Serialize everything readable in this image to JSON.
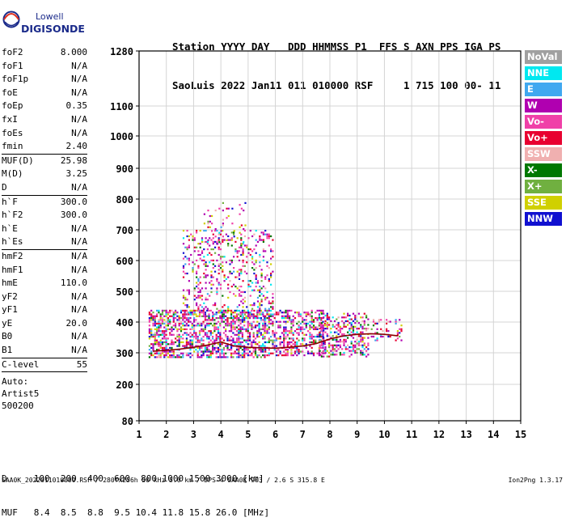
{
  "logo": {
    "line1": "Lowell",
    "line2": "DIGISONDE"
  },
  "header": {
    "row1": "Station YYYY DAY   DDD HHMMSS P1  FFS S AXN PPS IGA PS",
    "row2": "SaoLuis 2022 Jan11 011 010000 RSF     1 715 100 00- 11"
  },
  "params": {
    "group1": [
      {
        "label": "foF2",
        "value": "8.000"
      },
      {
        "label": "foF1",
        "value": "N/A"
      },
      {
        "label": "foF1p",
        "value": "N/A"
      },
      {
        "label": "foE",
        "value": "N/A"
      },
      {
        "label": "foEp",
        "value": "0.35"
      },
      {
        "label": "fxI",
        "value": "N/A"
      },
      {
        "label": "foEs",
        "value": "N/A"
      },
      {
        "label": "fmin",
        "value": "2.40"
      }
    ],
    "group2": [
      {
        "label": "MUF(D)",
        "value": "25.98"
      },
      {
        "label": "M(D)",
        "value": "3.25"
      },
      {
        "label": "D",
        "value": "N/A"
      }
    ],
    "group3": [
      {
        "label": "h`F",
        "value": "300.0"
      },
      {
        "label": "h`F2",
        "value": "300.0"
      },
      {
        "label": "h`E",
        "value": "N/A"
      },
      {
        "label": "h`Es",
        "value": "N/A"
      }
    ],
    "group4": [
      {
        "label": "hmF2",
        "value": "N/A"
      },
      {
        "label": "hmF1",
        "value": "N/A"
      },
      {
        "label": "hmE",
        "value": "110.0"
      },
      {
        "label": "yF2",
        "value": "N/A"
      },
      {
        "label": "yF1",
        "value": "N/A"
      },
      {
        "label": "yE",
        "value": "20.0"
      },
      {
        "label": "B0",
        "value": "N/A"
      },
      {
        "label": "B1",
        "value": "N/A"
      }
    ],
    "group5": [
      {
        "label": "C-level",
        "value": "55"
      }
    ],
    "auto": [
      "Auto:",
      "Artist5",
      "500200"
    ]
  },
  "legend": [
    {
      "label": "NoVal",
      "color": "#a0a0a0"
    },
    {
      "label": "NNE",
      "color": "#00e8f0"
    },
    {
      "label": "E",
      "color": "#40a8f0"
    },
    {
      "label": "W",
      "color": "#b000b0"
    },
    {
      "label": "Vo-",
      "color": "#f040a8"
    },
    {
      "label": "Vo+",
      "color": "#e80030"
    },
    {
      "label": "SSW",
      "color": "#f0b0b0"
    },
    {
      "label": "X-",
      "color": "#007800"
    },
    {
      "label": "X+",
      "color": "#70b040"
    },
    {
      "label": "SSE",
      "color": "#d0d000"
    },
    {
      "label": "NNW",
      "color": "#1010d0"
    }
  ],
  "chart_data": {
    "type": "scatter",
    "xlabel": "",
    "ylabel": "",
    "xlim": [
      1,
      15
    ],
    "ylim": [
      80,
      1280
    ],
    "y_scale": "nonlinear",
    "grid": true,
    "x_ticks": [
      "1",
      "2",
      "3",
      "4",
      "5",
      "6",
      "7",
      "8",
      "9",
      "10",
      "11",
      "12",
      "13",
      "14",
      "15"
    ],
    "y_ticks": [
      "1280",
      "1100",
      "1000",
      "900",
      "800",
      "700",
      "600",
      "500",
      "400",
      "300",
      "200",
      "80"
    ],
    "y_tick_values": [
      1280,
      1100,
      1000,
      900,
      800,
      700,
      600,
      500,
      400,
      300,
      200,
      80
    ],
    "echo_regions": [
      {
        "x": [
          1.35,
          5.6
        ],
        "y": [
          285,
          440
        ],
        "density": 0.55
      },
      {
        "x": [
          2.6,
          5.9
        ],
        "y": [
          420,
          700
        ],
        "density": 0.22
      },
      {
        "x": [
          3.3,
          5.0
        ],
        "y": [
          650,
          790
        ],
        "density": 0.07
      },
      {
        "x": [
          5.6,
          7.8
        ],
        "y": [
          290,
          440
        ],
        "density": 0.45
      },
      {
        "x": [
          7.6,
          9.4
        ],
        "y": [
          290,
          430
        ],
        "density": 0.4
      },
      {
        "x": [
          9.5,
          10.6
        ],
        "y": [
          340,
          410
        ],
        "density": 0.25
      }
    ],
    "trace": {
      "color": "#8b0000",
      "x": [
        1.5,
        2.0,
        2.5,
        3.0,
        3.5,
        4.0,
        4.5,
        5.0,
        5.5,
        6.0,
        6.5,
        7.0,
        7.5,
        8.0,
        8.5,
        9.0,
        9.5,
        10.0,
        10.5
      ],
      "y": [
        305,
        308,
        312,
        318,
        325,
        335,
        322,
        318,
        316,
        315,
        318,
        322,
        330,
        345,
        355,
        360,
        362,
        360,
        355
      ]
    }
  },
  "footer": {
    "row1": "D     100  200  400  600  800 1000 1500 3000 [km]",
    "row2": "MUF   8.4  8.5  8.8  9.5 10.4 11.8 15.8 26.0 [MHz]",
    "file": "SAA0K_2022011010000.RSF / 280fx256h 50 kHz 5.0 km / DPS-4 SAA0K 903 / 2.6 S 315.8 E",
    "version": "Ion2Png 1.3.17"
  }
}
